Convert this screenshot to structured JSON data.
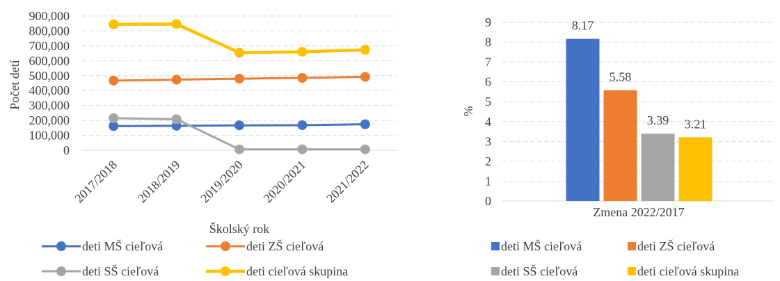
{
  "chart_data": [
    {
      "type": "line",
      "categories": [
        "2017/2018",
        "2018/2019",
        "2019/2020",
        "2020/2021",
        "2021/2022"
      ],
      "series": [
        {
          "name": "deti MŠ cieľová",
          "values": [
            162000,
            164000,
            167000,
            168000,
            174000
          ],
          "color": "#4472C4"
        },
        {
          "name": "deti ZŠ cieľová",
          "values": [
            467000,
            473000,
            480000,
            485000,
            492000
          ],
          "color": "#ED7D31"
        },
        {
          "name": "deti SŠ cieľová",
          "values": [
            215000,
            208000,
            6000,
            6000,
            6000
          ],
          "color": "#A5A5A5"
        },
        {
          "name": "deti cieľová skupina",
          "values": [
            844000,
            846000,
            654000,
            660000,
            673000
          ],
          "color": "#FFC000"
        }
      ],
      "ylabel": "Počet detí",
      "xlabel": "Školský rok",
      "ylim": [
        0,
        900000
      ],
      "yticks": [
        "0",
        "100,000",
        "200,000",
        "300,000",
        "400,000",
        "500,000",
        "600,000",
        "700,000",
        "800,000",
        "900,000"
      ],
      "grid": true,
      "legend": "bottom"
    },
    {
      "type": "bar",
      "categories": [
        "Zmena 2022/2017"
      ],
      "series": [
        {
          "name": "deti MŠ cieľová",
          "values": [
            8.17
          ],
          "label": "8.17",
          "color": "#4472C4"
        },
        {
          "name": "deti ZŠ cieľová",
          "values": [
            5.58
          ],
          "label": "5.58",
          "color": "#ED7D31"
        },
        {
          "name": "deti SŠ cieľová",
          "values": [
            3.39
          ],
          "label": "3.39",
          "color": "#A5A5A5"
        },
        {
          "name": "deti cieľová skupina",
          "values": [
            3.21
          ],
          "label": "3.21",
          "color": "#FFC000"
        }
      ],
      "ylabel": "%",
      "ylim": [
        0,
        9
      ],
      "yticks": [
        "0",
        "1",
        "2",
        "3",
        "4",
        "5",
        "6",
        "7",
        "8",
        "9"
      ],
      "grid": true,
      "legend": "bottom"
    }
  ]
}
